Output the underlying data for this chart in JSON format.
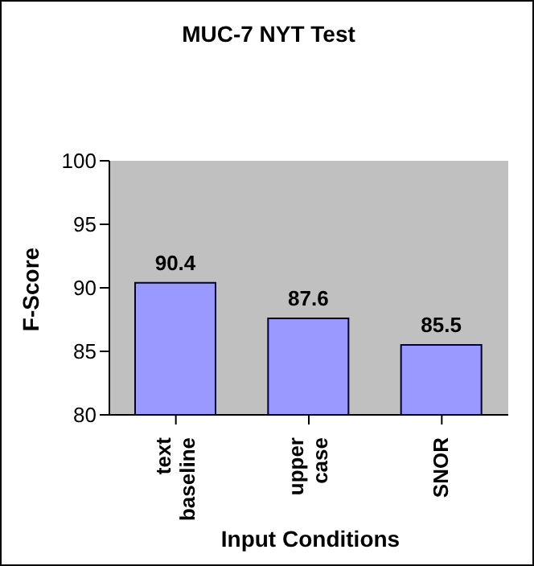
{
  "chart_data": {
    "type": "bar",
    "title": "MUC-7 NYT Test",
    "xlabel": "Input Conditions",
    "ylabel": "F-Score",
    "categories": [
      "text baseline",
      "upper case",
      "SNOR"
    ],
    "values": [
      90.4,
      87.6,
      85.5
    ],
    "color": "#9999ff",
    "ylim": [
      80,
      100
    ],
    "yticks": [
      80,
      85,
      90,
      95,
      100
    ],
    "grid": false,
    "data_labels": true
  }
}
